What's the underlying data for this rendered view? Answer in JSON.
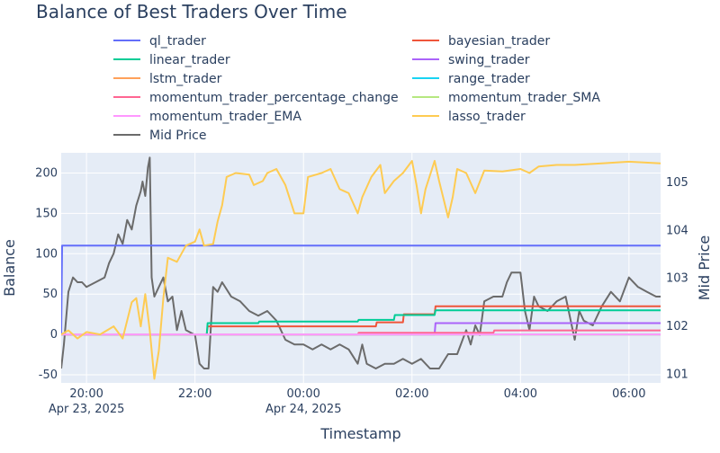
{
  "chart_data": {
    "type": "line",
    "title": "Balance of Best Traders Over Time",
    "xlabel": "Timestamp",
    "ylabel": "Balance",
    "y2label": "Mid Price",
    "legend_position": "top",
    "grid": true,
    "xlim": [
      "2025-04-23 19:32",
      "2025-04-24 06:35"
    ],
    "ylim": [
      -60,
      225
    ],
    "y2lim": [
      100.8,
      105.6
    ],
    "x_ticks": [
      {
        "t": "2025-04-23 20:00",
        "label": "20:00",
        "sub": "Apr 23, 2025"
      },
      {
        "t": "2025-04-23 22:00",
        "label": "22:00",
        "sub": ""
      },
      {
        "t": "2025-04-24 00:00",
        "label": "00:00",
        "sub": "Apr 24, 2025"
      },
      {
        "t": "2025-04-24 02:00",
        "label": "02:00",
        "sub": ""
      },
      {
        "t": "2025-04-24 04:00",
        "label": "04:00",
        "sub": ""
      },
      {
        "t": "2025-04-24 06:00",
        "label": "06:00",
        "sub": ""
      }
    ],
    "y_ticks": [
      -50,
      0,
      50,
      100,
      150,
      200
    ],
    "y2_ticks": [
      101,
      102,
      103,
      104,
      105
    ],
    "series": [
      {
        "name": "ql_trader",
        "color": "#636efa",
        "axis": "y",
        "points": [
          [
            "2025-04-23 19:32",
            0
          ],
          [
            "2025-04-23 19:33",
            110
          ],
          [
            "2025-04-24 06:35",
            110
          ]
        ]
      },
      {
        "name": "bayesian_trader",
        "color": "#ef553b",
        "axis": "y",
        "points": [
          [
            "2025-04-23 19:32",
            0
          ],
          [
            "2025-04-23 22:13",
            0
          ],
          [
            "2025-04-23 22:14",
            10
          ],
          [
            "2025-04-24 01:20",
            10
          ],
          [
            "2025-04-24 01:21",
            15
          ],
          [
            "2025-04-24 01:50",
            15
          ],
          [
            "2025-04-24 01:51",
            25
          ],
          [
            "2025-04-24 02:25",
            25
          ],
          [
            "2025-04-24 02:26",
            35
          ],
          [
            "2025-04-24 06:35",
            35
          ]
        ]
      },
      {
        "name": "linear_trader",
        "color": "#00cc96",
        "axis": "y",
        "points": [
          [
            "2025-04-23 19:32",
            0
          ],
          [
            "2025-04-23 22:13",
            0
          ],
          [
            "2025-04-23 22:14",
            14
          ],
          [
            "2025-04-23 23:10",
            14
          ],
          [
            "2025-04-23 23:11",
            16
          ],
          [
            "2025-04-24 01:00",
            16
          ],
          [
            "2025-04-24 01:01",
            18
          ],
          [
            "2025-04-24 01:40",
            18
          ],
          [
            "2025-04-24 01:41",
            24
          ],
          [
            "2025-04-24 02:25",
            24
          ],
          [
            "2025-04-24 02:26",
            30
          ],
          [
            "2025-04-24 06:35",
            30
          ]
        ]
      },
      {
        "name": "swing_trader",
        "color": "#ab63fa",
        "axis": "y",
        "points": [
          [
            "2025-04-23 19:32",
            0
          ],
          [
            "2025-04-24 02:25",
            0
          ],
          [
            "2025-04-24 02:26",
            14
          ],
          [
            "2025-04-24 06:35",
            14
          ]
        ]
      },
      {
        "name": "lstm_trader",
        "color": "#ffa15a",
        "axis": "y",
        "points": [
          [
            "2025-04-23 19:32",
            0
          ],
          [
            "2025-04-24 06:35",
            0
          ]
        ]
      },
      {
        "name": "range_trader",
        "color": "#19d3f3",
        "axis": "y",
        "points": [
          [
            "2025-04-23 19:32",
            0
          ],
          [
            "2025-04-24 06:35",
            0
          ]
        ]
      },
      {
        "name": "momentum_trader_percentage_change",
        "color": "#ff6692",
        "axis": "y",
        "points": [
          [
            "2025-04-23 19:32",
            0
          ],
          [
            "2025-04-24 01:00",
            0
          ],
          [
            "2025-04-24 01:01",
            2
          ],
          [
            "2025-04-24 03:30",
            2
          ],
          [
            "2025-04-24 03:31",
            5
          ],
          [
            "2025-04-24 06:35",
            5
          ]
        ]
      },
      {
        "name": "momentum_trader_SMA",
        "color": "#b6e880",
        "axis": "y",
        "points": [
          [
            "2025-04-23 19:32",
            0
          ],
          [
            "2025-04-24 06:35",
            0
          ]
        ]
      },
      {
        "name": "momentum_trader_EMA",
        "color": "#ff97ff",
        "axis": "y",
        "points": [
          [
            "2025-04-23 19:32",
            0
          ],
          [
            "2025-04-24 06:35",
            0
          ]
        ]
      },
      {
        "name": "lasso_trader",
        "color": "#fecb52",
        "axis": "y",
        "points": [
          [
            "2025-04-23 19:32",
            0
          ],
          [
            "2025-04-23 19:40",
            5
          ],
          [
            "2025-04-23 19:50",
            -5
          ],
          [
            "2025-04-23 20:00",
            3
          ],
          [
            "2025-04-23 20:15",
            0
          ],
          [
            "2025-04-23 20:30",
            10
          ],
          [
            "2025-04-23 20:40",
            -5
          ],
          [
            "2025-04-23 20:50",
            40
          ],
          [
            "2025-04-23 20:55",
            45
          ],
          [
            "2025-04-23 21:00",
            10
          ],
          [
            "2025-04-23 21:05",
            50
          ],
          [
            "2025-04-23 21:10",
            5
          ],
          [
            "2025-04-23 21:15",
            -55
          ],
          [
            "2025-04-23 21:20",
            -20
          ],
          [
            "2025-04-23 21:25",
            45
          ],
          [
            "2025-04-23 21:30",
            95
          ],
          [
            "2025-04-23 21:40",
            90
          ],
          [
            "2025-04-23 21:50",
            110
          ],
          [
            "2025-04-23 22:00",
            115
          ],
          [
            "2025-04-23 22:05",
            130
          ],
          [
            "2025-04-23 22:10",
            110
          ],
          [
            "2025-04-23 22:20",
            112
          ],
          [
            "2025-04-23 22:25",
            140
          ],
          [
            "2025-04-23 22:30",
            160
          ],
          [
            "2025-04-23 22:35",
            195
          ],
          [
            "2025-04-23 22:45",
            200
          ],
          [
            "2025-04-23 23:00",
            198
          ],
          [
            "2025-04-23 23:05",
            185
          ],
          [
            "2025-04-23 23:15",
            190
          ],
          [
            "2025-04-23 23:20",
            200
          ],
          [
            "2025-04-23 23:30",
            205
          ],
          [
            "2025-04-23 23:40",
            185
          ],
          [
            "2025-04-23 23:50",
            150
          ],
          [
            "2025-04-24 00:00",
            150
          ],
          [
            "2025-04-24 00:05",
            195
          ],
          [
            "2025-04-24 00:20",
            200
          ],
          [
            "2025-04-24 00:30",
            205
          ],
          [
            "2025-04-24 00:40",
            180
          ],
          [
            "2025-04-24 00:50",
            175
          ],
          [
            "2025-04-24 01:00",
            150
          ],
          [
            "2025-04-24 01:05",
            170
          ],
          [
            "2025-04-24 01:15",
            195
          ],
          [
            "2025-04-24 01:25",
            210
          ],
          [
            "2025-04-24 01:30",
            175
          ],
          [
            "2025-04-24 01:40",
            190
          ],
          [
            "2025-04-24 01:50",
            200
          ],
          [
            "2025-04-24 02:00",
            215
          ],
          [
            "2025-04-24 02:05",
            185
          ],
          [
            "2025-04-24 02:10",
            150
          ],
          [
            "2025-04-24 02:15",
            180
          ],
          [
            "2025-04-24 02:25",
            215
          ],
          [
            "2025-04-24 02:30",
            190
          ],
          [
            "2025-04-24 02:40",
            145
          ],
          [
            "2025-04-24 02:45",
            170
          ],
          [
            "2025-04-24 02:50",
            205
          ],
          [
            "2025-04-24 03:00",
            200
          ],
          [
            "2025-04-24 03:10",
            175
          ],
          [
            "2025-04-24 03:20",
            203
          ],
          [
            "2025-04-24 03:40",
            202
          ],
          [
            "2025-04-24 04:00",
            205
          ],
          [
            "2025-04-24 04:10",
            200
          ],
          [
            "2025-04-24 04:20",
            208
          ],
          [
            "2025-04-24 04:40",
            210
          ],
          [
            "2025-04-24 05:00",
            210
          ],
          [
            "2025-04-24 05:30",
            212
          ],
          [
            "2025-04-24 06:00",
            214
          ],
          [
            "2025-04-24 06:35",
            212
          ]
        ]
      },
      {
        "name": "Mid Price",
        "color": "#6b6b6b",
        "axis": "y2",
        "points": [
          [
            "2025-04-23 19:32",
            101.1
          ],
          [
            "2025-04-23 19:35",
            101.6
          ],
          [
            "2025-04-23 19:40",
            102.7
          ],
          [
            "2025-04-23 19:45",
            103.0
          ],
          [
            "2025-04-23 19:50",
            102.9
          ],
          [
            "2025-04-23 19:55",
            102.9
          ],
          [
            "2025-04-23 20:00",
            102.8
          ],
          [
            "2025-04-23 20:10",
            102.9
          ],
          [
            "2025-04-23 20:20",
            103.0
          ],
          [
            "2025-04-23 20:25",
            103.3
          ],
          [
            "2025-04-23 20:30",
            103.5
          ],
          [
            "2025-04-23 20:35",
            103.9
          ],
          [
            "2025-04-23 20:40",
            103.7
          ],
          [
            "2025-04-23 20:45",
            104.2
          ],
          [
            "2025-04-23 20:50",
            104.0
          ],
          [
            "2025-04-23 20:55",
            104.5
          ],
          [
            "2025-04-23 21:00",
            104.8
          ],
          [
            "2025-04-23 21:02",
            105.0
          ],
          [
            "2025-04-23 21:05",
            104.7
          ],
          [
            "2025-04-23 21:08",
            105.3
          ],
          [
            "2025-04-23 21:10",
            105.5
          ],
          [
            "2025-04-23 21:12",
            103.0
          ],
          [
            "2025-04-23 21:15",
            102.6
          ],
          [
            "2025-04-23 21:20",
            102.8
          ],
          [
            "2025-04-23 21:25",
            103.0
          ],
          [
            "2025-04-23 21:30",
            102.5
          ],
          [
            "2025-04-23 21:35",
            102.6
          ],
          [
            "2025-04-23 21:40",
            101.9
          ],
          [
            "2025-04-23 21:45",
            102.3
          ],
          [
            "2025-04-23 21:50",
            101.9
          ],
          [
            "2025-04-23 22:00",
            101.8
          ],
          [
            "2025-04-23 22:05",
            101.2
          ],
          [
            "2025-04-23 22:10",
            101.1
          ],
          [
            "2025-04-23 22:15",
            101.1
          ],
          [
            "2025-04-23 22:20",
            102.8
          ],
          [
            "2025-04-23 22:25",
            102.7
          ],
          [
            "2025-04-23 22:30",
            102.9
          ],
          [
            "2025-04-23 22:40",
            102.6
          ],
          [
            "2025-04-23 22:50",
            102.5
          ],
          [
            "2025-04-23 23:00",
            102.3
          ],
          [
            "2025-04-23 23:10",
            102.2
          ],
          [
            "2025-04-23 23:20",
            102.3
          ],
          [
            "2025-04-23 23:30",
            102.1
          ],
          [
            "2025-04-23 23:40",
            101.7
          ],
          [
            "2025-04-23 23:50",
            101.6
          ],
          [
            "2025-04-24 00:00",
            101.6
          ],
          [
            "2025-04-24 00:10",
            101.5
          ],
          [
            "2025-04-24 00:20",
            101.6
          ],
          [
            "2025-04-24 00:30",
            101.5
          ],
          [
            "2025-04-24 00:40",
            101.6
          ],
          [
            "2025-04-24 00:50",
            101.5
          ],
          [
            "2025-04-24 01:00",
            101.2
          ],
          [
            "2025-04-24 01:05",
            101.6
          ],
          [
            "2025-04-24 01:10",
            101.2
          ],
          [
            "2025-04-24 01:20",
            101.1
          ],
          [
            "2025-04-24 01:30",
            101.2
          ],
          [
            "2025-04-24 01:40",
            101.2
          ],
          [
            "2025-04-24 01:50",
            101.3
          ],
          [
            "2025-04-24 02:00",
            101.2
          ],
          [
            "2025-04-24 02:10",
            101.3
          ],
          [
            "2025-04-24 02:20",
            101.1
          ],
          [
            "2025-04-24 02:30",
            101.1
          ],
          [
            "2025-04-24 02:40",
            101.4
          ],
          [
            "2025-04-24 02:50",
            101.4
          ],
          [
            "2025-04-24 03:00",
            101.9
          ],
          [
            "2025-04-24 03:05",
            101.6
          ],
          [
            "2025-04-24 03:10",
            102.0
          ],
          [
            "2025-04-24 03:15",
            101.8
          ],
          [
            "2025-04-24 03:20",
            102.5
          ],
          [
            "2025-04-24 03:30",
            102.6
          ],
          [
            "2025-04-24 03:40",
            102.6
          ],
          [
            "2025-04-24 03:45",
            102.9
          ],
          [
            "2025-04-24 03:50",
            103.1
          ],
          [
            "2025-04-24 04:00",
            103.1
          ],
          [
            "2025-04-24 04:05",
            102.3
          ],
          [
            "2025-04-24 04:10",
            101.9
          ],
          [
            "2025-04-24 04:15",
            102.6
          ],
          [
            "2025-04-24 04:20",
            102.4
          ],
          [
            "2025-04-24 04:30",
            102.3
          ],
          [
            "2025-04-24 04:40",
            102.5
          ],
          [
            "2025-04-24 04:50",
            102.6
          ],
          [
            "2025-04-24 05:00",
            101.7
          ],
          [
            "2025-04-24 05:05",
            102.3
          ],
          [
            "2025-04-24 05:10",
            102.1
          ],
          [
            "2025-04-24 05:20",
            102.0
          ],
          [
            "2025-04-24 05:30",
            102.4
          ],
          [
            "2025-04-24 05:40",
            102.7
          ],
          [
            "2025-04-24 05:50",
            102.5
          ],
          [
            "2025-04-24 06:00",
            103.0
          ],
          [
            "2025-04-24 06:10",
            102.8
          ],
          [
            "2025-04-24 06:20",
            102.7
          ],
          [
            "2025-04-24 06:30",
            102.6
          ],
          [
            "2025-04-24 06:35",
            102.6
          ]
        ]
      }
    ],
    "legend_order": [
      "ql_trader",
      "bayesian_trader",
      "linear_trader",
      "swing_trader",
      "lstm_trader",
      "range_trader",
      "momentum_trader_percentage_change",
      "momentum_trader_SMA",
      "momentum_trader_EMA",
      "lasso_trader",
      "Mid Price"
    ]
  }
}
